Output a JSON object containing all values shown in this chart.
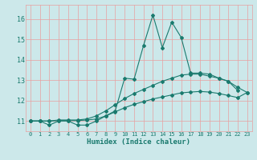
{
  "xlabel": "Humidex (Indice chaleur)",
  "bg_color": "#cce8ea",
  "grid_color": "#e8a0a0",
  "line_color": "#1a7a6e",
  "xlim": [
    -0.5,
    23.5
  ],
  "ylim": [
    10.5,
    16.7
  ],
  "yticks": [
    11,
    12,
    13,
    14,
    15,
    16
  ],
  "xticks": [
    0,
    1,
    2,
    3,
    4,
    5,
    6,
    7,
    8,
    9,
    10,
    11,
    12,
    13,
    14,
    15,
    16,
    17,
    18,
    19,
    20,
    21,
    22,
    23
  ],
  "series1_x": [
    0,
    1,
    2,
    3,
    4,
    5,
    6,
    7,
    8,
    9,
    10,
    11,
    12,
    13,
    14,
    15,
    16,
    17,
    18,
    19,
    20,
    21,
    22
  ],
  "series1_y": [
    11.0,
    11.0,
    10.8,
    11.0,
    11.0,
    10.8,
    10.8,
    11.0,
    11.25,
    11.5,
    13.1,
    13.05,
    14.7,
    16.2,
    14.6,
    15.85,
    15.1,
    13.35,
    13.35,
    13.3,
    13.1,
    12.95,
    12.5
  ],
  "series2_x": [
    0,
    1,
    2,
    3,
    4,
    5,
    6,
    7,
    8,
    9,
    10,
    11,
    12,
    13,
    14,
    15,
    16,
    17,
    18,
    19,
    20,
    21,
    22,
    23
  ],
  "series2_y": [
    11.0,
    11.0,
    11.0,
    11.05,
    11.05,
    11.05,
    11.1,
    11.25,
    11.5,
    11.8,
    12.1,
    12.35,
    12.55,
    12.75,
    12.95,
    13.1,
    13.25,
    13.3,
    13.3,
    13.2,
    13.1,
    12.95,
    12.65,
    12.4
  ],
  "series3_x": [
    0,
    1,
    2,
    3,
    4,
    5,
    6,
    7,
    8,
    9,
    10,
    11,
    12,
    13,
    14,
    15,
    16,
    17,
    18,
    19,
    20,
    21,
    22,
    23
  ],
  "series3_y": [
    11.0,
    11.0,
    11.0,
    11.02,
    11.02,
    11.02,
    11.05,
    11.1,
    11.25,
    11.45,
    11.65,
    11.82,
    11.95,
    12.08,
    12.18,
    12.28,
    12.38,
    12.42,
    12.45,
    12.42,
    12.35,
    12.25,
    12.15,
    12.4
  ]
}
